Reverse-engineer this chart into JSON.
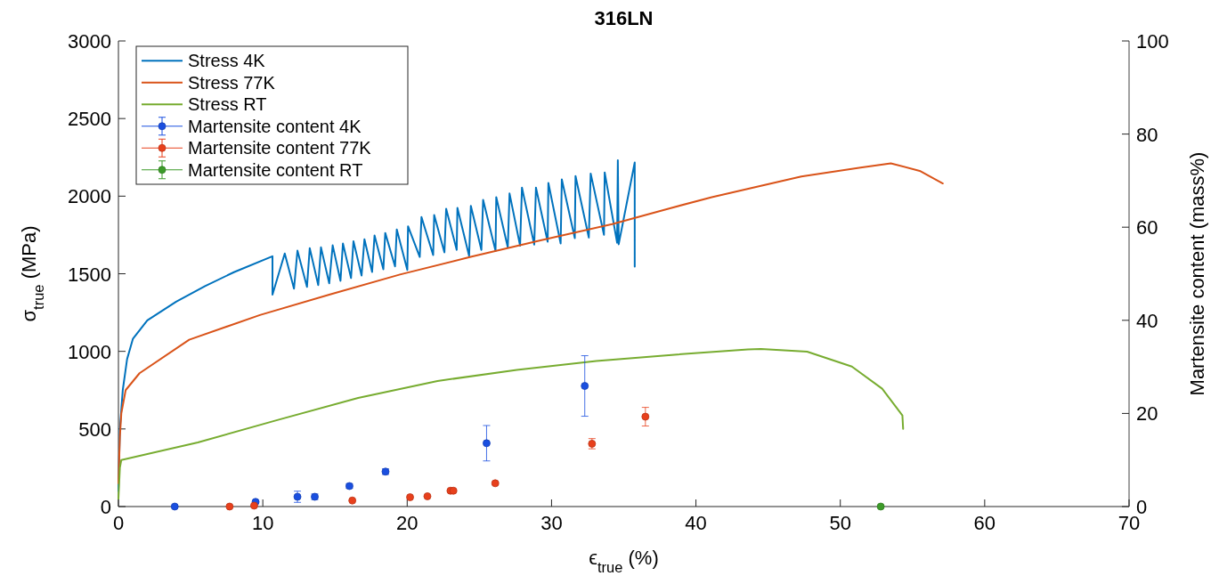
{
  "chart_data": {
    "type": "line",
    "title": "316LN",
    "xlabel": "ϵ$_{true}$ (%)",
    "ylabel": "σ$_{true}$ (MPa)",
    "y2label": "Martensite content (mass%)",
    "xlim": [
      0,
      70
    ],
    "xticks": [
      0,
      10,
      20,
      30,
      40,
      50,
      60,
      70
    ],
    "ylim": [
      0,
      3000
    ],
    "yticks": [
      0,
      500,
      1000,
      1500,
      2000,
      2500,
      3000
    ],
    "y2lim": [
      0,
      100
    ],
    "y2ticks": [
      0,
      20,
      40,
      60,
      80,
      100
    ],
    "legend": "top left",
    "series": [
      {
        "name": "Stress 4K",
        "color": "#0072bd",
        "line_style": "solid",
        "x": [
          0,
          0.1,
          0.3,
          0.6,
          1.0,
          2,
          4,
          6,
          8,
          10.67,
          10.67,
          11.52,
          12.16,
          12.4,
          13.06,
          13.25,
          13.84,
          14.03,
          14.6,
          14.84,
          15.38,
          15.55,
          16.11,
          16.28,
          16.84,
          17.04,
          17.57,
          17.74,
          18.35,
          18.48,
          19.16,
          19.28,
          20.01,
          20.06,
          20.87,
          20.99,
          21.8,
          21.87,
          22.58,
          22.7,
          23.43,
          23.48,
          24.29,
          24.41,
          25.14,
          25.26,
          26.12,
          26.17,
          26.97,
          27.09,
          27.82,
          27.95,
          28.8,
          28.92,
          29.73,
          29.78,
          30.63,
          30.71,
          31.61,
          31.66,
          32.58,
          32.71,
          33.63,
          33.68,
          34.54,
          34.59,
          34.65,
          35.76,
          35.76
        ],
        "values": [
          100,
          500,
          750,
          950,
          1080,
          1200,
          1320,
          1420,
          1510,
          1613,
          1365,
          1631,
          1404,
          1649,
          1415,
          1665,
          1427,
          1670,
          1438,
          1683,
          1454,
          1695,
          1472,
          1710,
          1488,
          1722,
          1511,
          1747,
          1529,
          1763,
          1547,
          1785,
          1524,
          1806,
          1608,
          1865,
          1620,
          1878,
          1638,
          1919,
          1654,
          1924,
          1615,
          1937,
          1654,
          1976,
          1647,
          1994,
          1669,
          2017,
          1681,
          2055,
          1688,
          2055,
          1706,
          2085,
          1695,
          2108,
          1729,
          2130,
          1733,
          2146,
          1751,
          2153,
          1700,
          2232,
          1690,
          2217,
          1546
        ]
      },
      {
        "name": "Stress 77K",
        "color": "#d95319",
        "line_style": "solid",
        "x": [
          0,
          0.1,
          0.2,
          0.5,
          1.46,
          4.9,
          9.8,
          14.6,
          19.5,
          24.4,
          29.3,
          34.2,
          38.2,
          41.1,
          47.3,
          51.4,
          53.5,
          55.5,
          57.1
        ],
        "values": [
          150,
          450,
          600,
          750,
          859,
          1075,
          1234,
          1365,
          1495,
          1609,
          1716,
          1820,
          1922,
          1993,
          2127,
          2184,
          2211,
          2163,
          2082
        ]
      },
      {
        "name": "Stress RT",
        "color": "#77ac30",
        "line_style": "solid",
        "x": [
          0,
          0.1,
          0.2,
          5.5,
          11.0,
          16.6,
          22.1,
          27.6,
          33.1,
          38.7,
          43.6,
          44.5,
          47.7,
          50.8,
          52.9,
          54.3,
          54.35
        ],
        "values": [
          50,
          250,
          300,
          413,
          557,
          700,
          809,
          881,
          938,
          980,
          1012,
          1015,
          998,
          902,
          759,
          587,
          501
        ]
      },
      {
        "name": "Martensite content 4K",
        "type": "scatter",
        "axis": "y2",
        "marker": "circle",
        "color": "#1a4fe0",
        "x": [
          3.9,
          9.5,
          12.4,
          13.6,
          16.0,
          18.5,
          25.5,
          32.3
        ],
        "values": [
          0,
          1.0,
          2.1,
          2.1,
          4.4,
          7.5,
          13.6,
          25.9
        ],
        "errors": [
          null,
          0.3,
          1.2,
          0.6,
          0.5,
          0.6,
          3.8,
          6.5
        ]
      },
      {
        "name": "Martensite content 77K",
        "type": "scatter",
        "axis": "y2",
        "marker": "circle",
        "color": "#e8401c",
        "x": [
          7.7,
          9.4,
          16.2,
          20.2,
          21.4,
          23.0,
          23.2,
          26.1,
          32.8,
          36.5
        ],
        "values": [
          0,
          0.2,
          1.3,
          2.0,
          2.2,
          3.4,
          3.4,
          5.0,
          13.5,
          19.3
        ],
        "errors": [
          null,
          null,
          null,
          null,
          null,
          0.3,
          0.3,
          0.3,
          1.1,
          2.0
        ]
      },
      {
        "name": "Martensite content RT",
        "type": "scatter",
        "axis": "y2",
        "marker": "circle",
        "color": "#3d9b2a",
        "x": [
          52.8
        ],
        "values": [
          0
        ]
      }
    ]
  }
}
